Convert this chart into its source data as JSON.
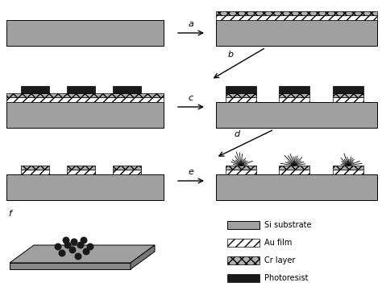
{
  "bg_color": "#ffffff",
  "si_color": "#a0a0a0",
  "au_hatch": "///",
  "cr_hatch": "xxx",
  "pr_color": "#1a1a1a",
  "white": "#ffffff",
  "cr_face": "#b0b0b0",
  "legend_items": [
    "Si substrate",
    "Au film",
    "Cr layer",
    "Photoresist"
  ],
  "step_labels": [
    "a",
    "b",
    "c",
    "d",
    "e",
    "f"
  ]
}
